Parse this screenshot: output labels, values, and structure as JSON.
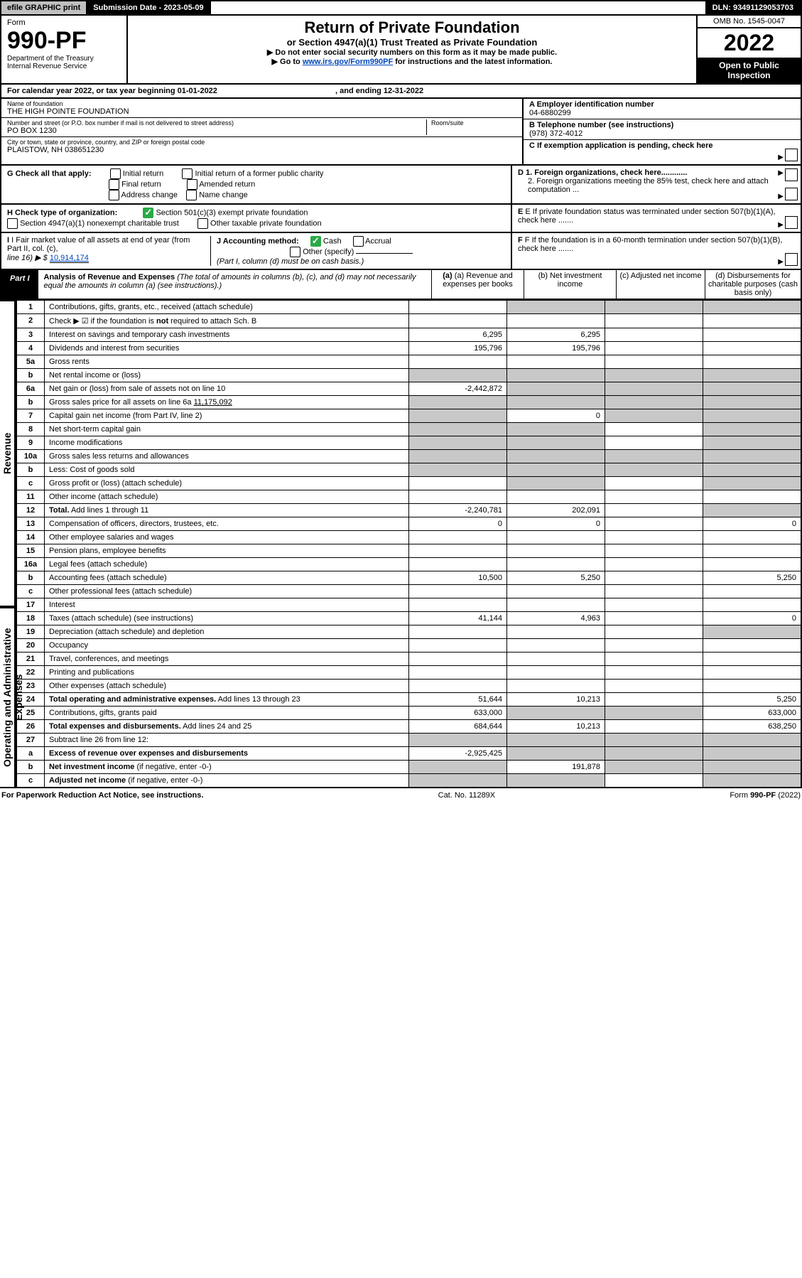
{
  "topbar": {
    "efile": "efile GRAPHIC print",
    "sub_label": "Submission Date - 2023-05-09",
    "dln": "DLN: 93491129053703"
  },
  "header": {
    "form_label": "Form",
    "form_number": "990-PF",
    "dept1": "Department of the Treasury",
    "dept2": "Internal Revenue Service",
    "title": "Return of Private Foundation",
    "subtitle": "or Section 4947(a)(1) Trust Treated as Private Foundation",
    "instr1": "▶ Do not enter social security numbers on this form as it may be made public.",
    "instr2_pre": "▶ Go to ",
    "instr2_link": "www.irs.gov/Form990PF",
    "instr2_post": " for instructions and the latest information.",
    "omb": "OMB No. 1545-0047",
    "year": "2022",
    "open_pub1": "Open to Public",
    "open_pub2": "Inspection"
  },
  "calyear": {
    "text_pre": "For calendar year 2022, or tax year beginning 01-01-2022",
    "text_mid": ", and ending 12-31-2022"
  },
  "nameaddr": {
    "name_label": "Name of foundation",
    "name_value": "THE HIGH POINTE FOUNDATION",
    "street_label": "Number and street (or P.O. box number if mail is not delivered to street address)",
    "room_label": "Room/suite",
    "street_value": "PO BOX 1230",
    "city_label": "City or town, state or province, country, and ZIP or foreign postal code",
    "city_value": "PLAISTOW, NH  038651230",
    "a_label": "A Employer identification number",
    "a_value": "04-6880299",
    "b_label": "B Telephone number (see instructions)",
    "b_value": "(978) 372-4012",
    "c_label": "C If exemption application is pending, check here"
  },
  "checks": {
    "g_label": "G Check all that apply:",
    "g_opts": [
      "Initial return",
      "Final return",
      "Address change",
      "Initial return of a former public charity",
      "Amended return",
      "Name change"
    ],
    "d1": "D 1. Foreign organizations, check here............",
    "d2": "2. Foreign organizations meeting the 85% test, check here and attach computation ...",
    "h_label": "H Check type of organization:",
    "h_501c3": "Section 501(c)(3) exempt private foundation",
    "h_4947": "Section 4947(a)(1) nonexempt charitable trust",
    "h_other": "Other taxable private foundation",
    "e_label": "E  If private foundation status was terminated under section 507(b)(1)(A), check here .......",
    "i_label": "I Fair market value of all assets at end of year (from Part II, col. (c),",
    "i_line": "line 16) ▶ $",
    "i_value": "10,914,174",
    "j_label": "J Accounting method:",
    "j_cash": "Cash",
    "j_accrual": "Accrual",
    "j_other": "Other (specify)",
    "j_note": "(Part I, column (d) must be on cash basis.)",
    "f_label": "F  If the foundation is in a 60-month termination under section 507(b)(1)(B), check here ......."
  },
  "part1": {
    "tag": "Part I",
    "title": "Analysis of Revenue and Expenses",
    "note": " (The total of amounts in columns (b), (c), and (d) may not necessarily equal the amounts in column (a) (see instructions).)",
    "col_a": "(a)   Revenue and expenses per books",
    "col_b": "(b)   Net investment income",
    "col_c": "(c)   Adjusted net income",
    "col_d": "(d)  Disbursements for charitable purposes (cash basis only)"
  },
  "vlabels": {
    "revenue": "Revenue",
    "opexp": "Operating and Administrative Expenses"
  },
  "rows": [
    {
      "no": "1",
      "desc": "Contributions, gifts, grants, etc., received (attach schedule)",
      "a": "",
      "b": "",
      "c": "",
      "d": "",
      "d_gray": true,
      "b_gray": true,
      "c_gray": true
    },
    {
      "no": "2",
      "desc": "Check ▶ ☑ if the foundation is <b>not</b> required to attach Sch. B",
      "span": true
    },
    {
      "no": "3",
      "desc": "Interest on savings and temporary cash investments",
      "a": "6,295",
      "b": "6,295"
    },
    {
      "no": "4",
      "desc": "Dividends and interest from securities",
      "a": "195,796",
      "b": "195,796"
    },
    {
      "no": "5a",
      "desc": "Gross rents"
    },
    {
      "no": "b",
      "desc": "Net rental income or (loss)",
      "a_gray": true,
      "b_gray": true,
      "c_gray": true,
      "d_gray": true
    },
    {
      "no": "6a",
      "desc": "Net gain or (loss) from sale of assets not on line 10",
      "a": "-2,442,872",
      "b_gray": true,
      "c_gray": true,
      "d_gray": true
    },
    {
      "no": "b",
      "desc": "Gross sales price for all assets on line 6a           <u>11,175,092</u>",
      "a_gray": true,
      "b_gray": true,
      "c_gray": true,
      "d_gray": true
    },
    {
      "no": "7",
      "desc": "Capital gain net income (from Part IV, line 2)",
      "a_gray": true,
      "b": "0",
      "c_gray": true,
      "d_gray": true
    },
    {
      "no": "8",
      "desc": "Net short-term capital gain",
      "a_gray": true,
      "b_gray": true,
      "d_gray": true
    },
    {
      "no": "9",
      "desc": "Income modifications",
      "a_gray": true,
      "b_gray": true,
      "d_gray": true
    },
    {
      "no": "10a",
      "desc": "Gross sales less returns and allowances",
      "a_gray": true,
      "b_gray": true,
      "c_gray": true,
      "d_gray": true
    },
    {
      "no": "b",
      "desc": "Less: Cost of goods sold",
      "a_gray": true,
      "b_gray": true,
      "c_gray": true,
      "d_gray": true
    },
    {
      "no": "c",
      "desc": "Gross profit or (loss) (attach schedule)",
      "b_gray": true,
      "d_gray": true
    },
    {
      "no": "11",
      "desc": "Other income (attach schedule)"
    },
    {
      "no": "12",
      "desc": "<b>Total.</b> Add lines 1 through 11",
      "a": "-2,240,781",
      "b": "202,091",
      "d_gray": true
    },
    {
      "no": "13",
      "desc": "Compensation of officers, directors, trustees, etc.",
      "a": "0",
      "b": "0",
      "d": "0"
    },
    {
      "no": "14",
      "desc": "Other employee salaries and wages"
    },
    {
      "no": "15",
      "desc": "Pension plans, employee benefits"
    },
    {
      "no": "16a",
      "desc": "Legal fees (attach schedule)"
    },
    {
      "no": "b",
      "desc": "Accounting fees (attach schedule)",
      "a": "10,500",
      "b": "5,250",
      "d": "5,250"
    },
    {
      "no": "c",
      "desc": "Other professional fees (attach schedule)"
    },
    {
      "no": "17",
      "desc": "Interest"
    },
    {
      "no": "18",
      "desc": "Taxes (attach schedule) (see instructions)",
      "a": "41,144",
      "b": "4,963",
      "d": "0"
    },
    {
      "no": "19",
      "desc": "Depreciation (attach schedule) and depletion",
      "d_gray": true
    },
    {
      "no": "20",
      "desc": "Occupancy"
    },
    {
      "no": "21",
      "desc": "Travel, conferences, and meetings"
    },
    {
      "no": "22",
      "desc": "Printing and publications"
    },
    {
      "no": "23",
      "desc": "Other expenses (attach schedule)"
    },
    {
      "no": "24",
      "desc": "<b>Total operating and administrative expenses.</b> Add lines 13 through 23",
      "a": "51,644",
      "b": "10,213",
      "d": "5,250"
    },
    {
      "no": "25",
      "desc": "Contributions, gifts, grants paid",
      "a": "633,000",
      "b_gray": true,
      "c_gray": true,
      "d": "633,000"
    },
    {
      "no": "26",
      "desc": "<b>Total expenses and disbursements.</b> Add lines 24 and 25",
      "a": "684,644",
      "b": "10,213",
      "d": "638,250"
    },
    {
      "no": "27",
      "desc": "Subtract line 26 from line 12:",
      "a_gray": true,
      "b_gray": true,
      "c_gray": true,
      "d_gray": true
    },
    {
      "no": "a",
      "desc": "<b>Excess of revenue over expenses and disbursements</b>",
      "a": "-2,925,425",
      "b_gray": true,
      "c_gray": true,
      "d_gray": true
    },
    {
      "no": "b",
      "desc": "<b>Net investment income</b> (if negative, enter -0-)",
      "a_gray": true,
      "b": "191,878",
      "c_gray": true,
      "d_gray": true
    },
    {
      "no": "c",
      "desc": "<b>Adjusted net income</b> (if negative, enter -0-)",
      "a_gray": true,
      "b_gray": true,
      "d_gray": true
    }
  ],
  "footer": {
    "left": "For Paperwork Reduction Act Notice, see instructions.",
    "mid": "Cat. No. 11289X",
    "right": "Form 990-PF (2022)"
  }
}
